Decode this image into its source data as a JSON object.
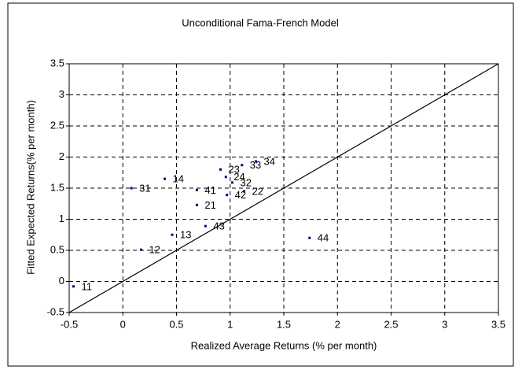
{
  "chart_data": {
    "type": "scatter",
    "title": "Unconditional Fama-French Model",
    "x_label": "Realized Average Returns (% per month)",
    "y_label": "Fitted Expected Returns(% per month)",
    "series": [
      {
        "color": "#000080",
        "labels": [
          "11",
          "31",
          "14",
          "12",
          "13",
          "41",
          "21",
          "43",
          "23",
          "24",
          "32",
          "42",
          "22",
          "33",
          "34",
          "44"
        ],
        "x": [
          -0.46,
          0.08,
          0.39,
          0.17,
          0.46,
          0.69,
          0.69,
          0.77,
          0.91,
          0.96,
          1.02,
          0.97,
          1.13,
          1.11,
          1.24,
          1.74
        ],
        "values": [
          -0.08,
          1.5,
          1.65,
          0.51,
          0.75,
          1.47,
          1.23,
          0.89,
          1.8,
          1.68,
          1.59,
          1.39,
          1.45,
          1.87,
          1.93,
          0.7
        ]
      }
    ],
    "reference_line": {
      "color": "#000000",
      "x": [
        -0.5,
        3.5
      ],
      "values": [
        -0.5,
        3.5
      ]
    },
    "xlim": [
      -0.5,
      3.5
    ],
    "xticks": [
      -0.5,
      0,
      0.5,
      1,
      1.5,
      2,
      2.5,
      3,
      3.5
    ],
    "ylim": [
      -0.5,
      3.5
    ],
    "yticks": [
      -0.5,
      0,
      0.5,
      1,
      1.5,
      2,
      2.5,
      3,
      3.5
    ],
    "grid": true
  }
}
